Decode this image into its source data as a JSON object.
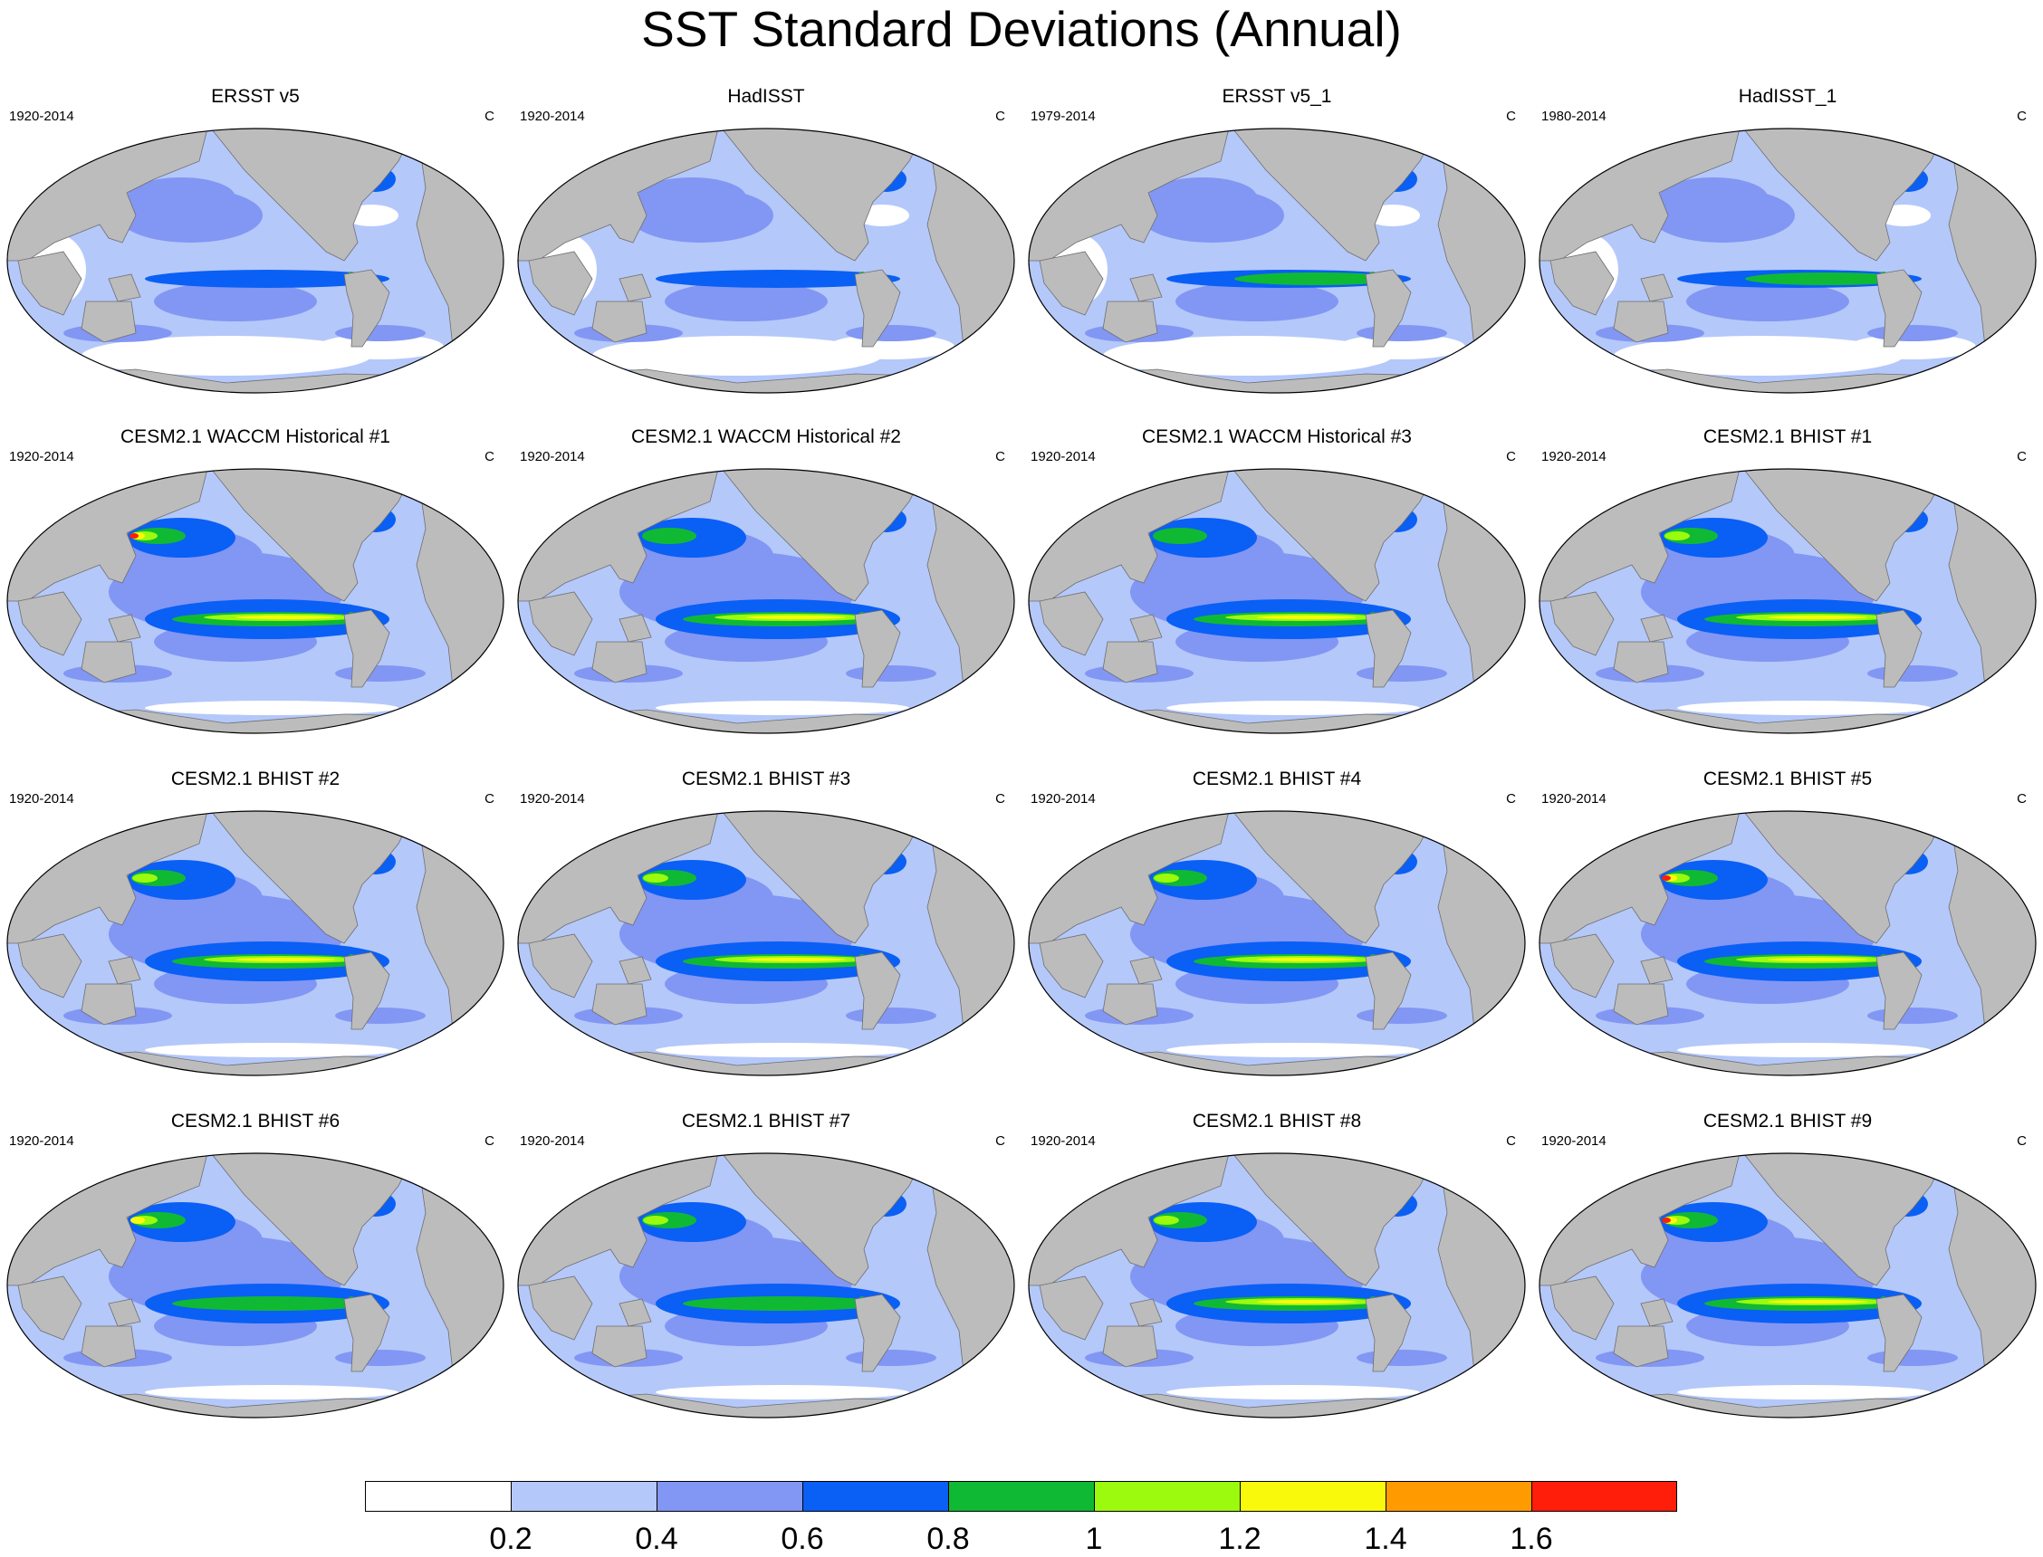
{
  "title": "SST Standard Deviations (Annual)",
  "panels": [
    {
      "title": "ERSST v5",
      "years": "1920-2014",
      "units": "C",
      "nino": 2,
      "kuro": 2,
      "gulf": 3,
      "white": "high"
    },
    {
      "title": "HadISST",
      "years": "1920-2014",
      "units": "C",
      "nino": 2,
      "kuro": 2,
      "gulf": 3,
      "white": "high"
    },
    {
      "title": "ERSST v5_1",
      "years": "1979-2014",
      "units": "C",
      "nino": 3,
      "kuro": 2,
      "gulf": 3,
      "white": "high"
    },
    {
      "title": "HadISST_1",
      "years": "1980-2014",
      "units": "C",
      "nino": 3,
      "kuro": 2,
      "gulf": 3,
      "white": "high"
    },
    {
      "title": "CESM2.1 WACCM Historical #1",
      "years": "1920-2014",
      "units": "C",
      "nino": 5,
      "kuro": 7,
      "gulf": 4,
      "white": "low"
    },
    {
      "title": "CESM2.1 WACCM Historical #2",
      "years": "1920-2014",
      "units": "C",
      "nino": 5,
      "kuro": 4,
      "gulf": 5,
      "white": "low"
    },
    {
      "title": "CESM2.1 WACCM Historical #3",
      "years": "1920-2014",
      "units": "C",
      "nino": 5,
      "kuro": 4,
      "gulf": 7,
      "white": "low"
    },
    {
      "title": "CESM2.1 BHIST #1",
      "years": "1920-2014",
      "units": "C",
      "nino": 5,
      "kuro": 5,
      "gulf": 5,
      "white": "low"
    },
    {
      "title": "CESM2.1 BHIST #2",
      "years": "1920-2014",
      "units": "C",
      "nino": 5,
      "kuro": 5,
      "gulf": 5,
      "white": "low"
    },
    {
      "title": "CESM2.1 BHIST #3",
      "years": "1920-2014",
      "units": "C",
      "nino": 5,
      "kuro": 5,
      "gulf": 5,
      "white": "low"
    },
    {
      "title": "CESM2.1 BHIST #4",
      "years": "1920-2014",
      "units": "C",
      "nino": 5,
      "kuro": 5,
      "gulf": 5,
      "white": "low"
    },
    {
      "title": "CESM2.1 BHIST #5",
      "years": "1920-2014",
      "units": "C",
      "nino": 5,
      "kuro": 7,
      "gulf": 5,
      "white": "low"
    },
    {
      "title": "CESM2.1 BHIST #6",
      "years": "1920-2014",
      "units": "C",
      "nino": 4,
      "kuro": 6,
      "gulf": 5,
      "white": "low"
    },
    {
      "title": "CESM2.1 BHIST #7",
      "years": "1920-2014",
      "units": "C",
      "nino": 4,
      "kuro": 5,
      "gulf": 5,
      "white": "low"
    },
    {
      "title": "CESM2.1 BHIST #8",
      "years": "1920-2014",
      "units": "C",
      "nino": 5,
      "kuro": 5,
      "gulf": 5,
      "white": "low"
    },
    {
      "title": "CESM2.1 BHIST #9",
      "years": "1920-2014",
      "units": "C",
      "nino": 5,
      "kuro": 7,
      "gulf": 5,
      "white": "low"
    }
  ],
  "colorbar": {
    "colors": [
      "#ffffff",
      "#b4c8fa",
      "#8296f4",
      "#0a5ff5",
      "#10b934",
      "#9bfa0d",
      "#f9f90c",
      "#ff9b00",
      "#ff1e0a"
    ],
    "labels": [
      "0.2",
      "0.4",
      "0.6",
      "0.8",
      "1",
      "1.2",
      "1.4",
      "1.6"
    ]
  },
  "land_color": "#bcbcbc"
}
